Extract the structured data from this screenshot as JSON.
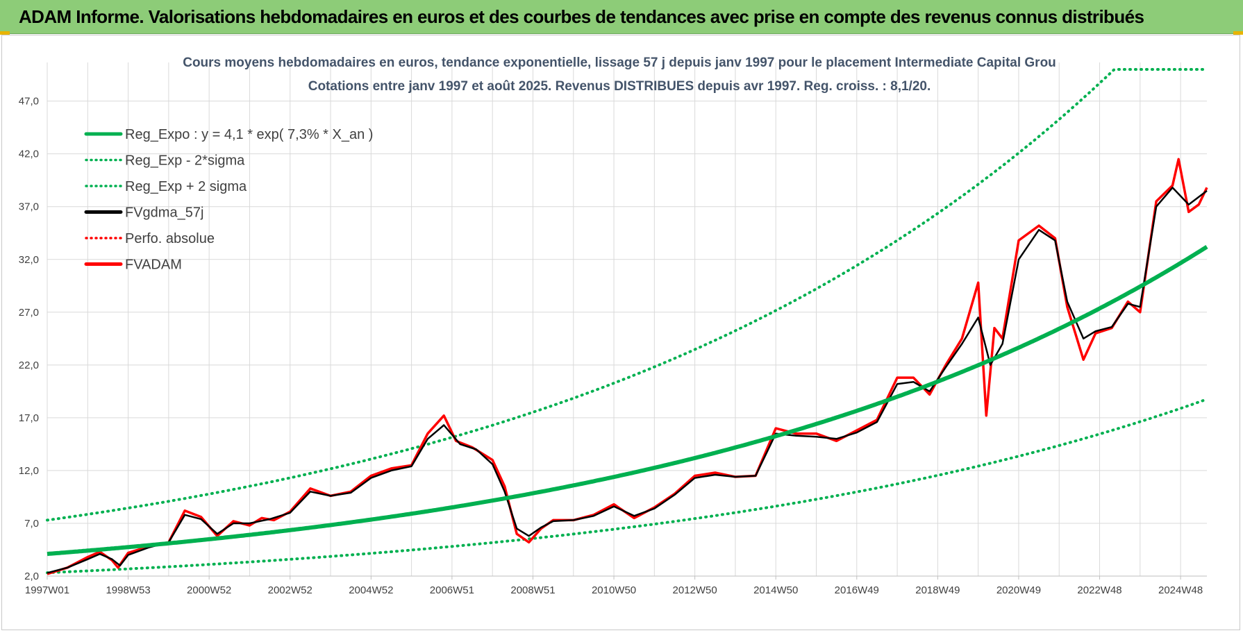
{
  "banner": {
    "title": "ADAM Informe. Valorisations hebdomadaires en euros et des courbes de tendances avec prise en compte des revenus connus distribués"
  },
  "colors": {
    "banner_bg": "#8dcc78",
    "trend": "#00b050",
    "series_black": "#000000",
    "series_red": "#ff0000",
    "grid": "#d9d9d9",
    "title": "#44546a"
  },
  "chart_data": {
    "type": "line",
    "title": "Cours moyens hebdomadaires en euros, tendance exponentielle, lissage 57 j depuis janv 1997  pour le placement Intermediate Capital Grou",
    "subtitle": "Cotations entre janv 1997 et août 2025.  Revenus DISTRIBUES depuis avr 1997.  Reg.  croiss. : 8,1/20.",
    "ylim": [
      2,
      50
    ],
    "yticks": [
      "2,0",
      "7,0",
      "12,0",
      "17,0",
      "22,0",
      "27,0",
      "32,0",
      "37,0",
      "42,0",
      "47,0"
    ],
    "ytick_values": [
      2,
      7,
      12,
      17,
      22,
      27,
      32,
      37,
      42,
      47
    ],
    "xlim": [
      1997.0,
      2025.65
    ],
    "xticks": [
      "1997W01",
      "1998W53",
      "2000W52",
      "2002W52",
      "2004W52",
      "2006W51",
      "2008W51",
      "2010W50",
      "2012W50",
      "2014W50",
      "2016W49",
      "2018W49",
      "2020W49",
      "2022W48",
      "2024W48"
    ],
    "xtick_values": [
      1997.0,
      1999.0,
      2001.0,
      2003.0,
      2005.0,
      2007.0,
      2009.0,
      2011.0,
      2013.0,
      2015.0,
      2017.0,
      2019.0,
      2021.0,
      2023.0,
      2025.0
    ],
    "grid": true,
    "legend_position": "top-left",
    "legend": [
      {
        "label": "Reg_Expo : y = 4,1 * exp( 7,3% *  X_an )",
        "style": "solid",
        "color": "#00b050"
      },
      {
        "label": "Reg_Exp - 2*sigma",
        "style": "dotted",
        "color": "#00b050"
      },
      {
        "label": "Reg_Exp + 2 sigma",
        "style": "dotted",
        "color": "#00b050"
      },
      {
        "label": "FVgdma_57j",
        "style": "solid",
        "color": "#000000"
      },
      {
        "label": "Perfo. absolue",
        "style": "dotted",
        "color": "#ff0000"
      },
      {
        "label": "FVADAM",
        "style": "solid",
        "color": "#ff0000"
      }
    ],
    "regression": {
      "a": 4.1,
      "rate": 0.073,
      "lower_factor": 0.565,
      "upper_factor": 1.78,
      "upper_cap": 50
    },
    "series": [
      {
        "name": "FVADAM",
        "x": [
          1997.0,
          1997.5,
          1998.0,
          1998.3,
          1998.6,
          1998.75,
          1999.0,
          1999.5,
          2000.0,
          2000.4,
          2000.8,
          2001.2,
          2001.6,
          2002.0,
          2002.3,
          2002.6,
          2003.0,
          2003.5,
          2004.0,
          2004.5,
          2005.0,
          2005.5,
          2006.0,
          2006.4,
          2006.8,
          2007.1,
          2007.5,
          2008.0,
          2008.3,
          2008.6,
          2008.9,
          2009.2,
          2009.5,
          2010.0,
          2010.5,
          2011.0,
          2011.5,
          2012.0,
          2012.5,
          2013.0,
          2013.5,
          2014.0,
          2014.5,
          2015.0,
          2015.5,
          2016.0,
          2016.5,
          2017.0,
          2017.5,
          2018.0,
          2018.4,
          2018.8,
          2019.2,
          2019.6,
          2020.0,
          2020.2,
          2020.4,
          2020.6,
          2021.0,
          2021.5,
          2021.9,
          2022.2,
          2022.6,
          2022.9,
          2023.3,
          2023.7,
          2024.0,
          2024.4,
          2024.8,
          2024.95,
          2025.2,
          2025.45,
          2025.65
        ],
        "y": [
          2.2,
          2.8,
          3.8,
          4.3,
          3.5,
          2.8,
          4.2,
          4.8,
          5.2,
          8.2,
          7.6,
          5.8,
          7.2,
          6.8,
          7.5,
          7.3,
          8.1,
          10.3,
          9.6,
          10.0,
          11.5,
          12.2,
          12.5,
          15.5,
          17.2,
          14.8,
          14.2,
          13.0,
          10.5,
          6.0,
          5.2,
          6.5,
          7.3,
          7.3,
          7.8,
          8.8,
          7.5,
          8.5,
          9.8,
          11.5,
          11.8,
          11.4,
          11.5,
          16.0,
          15.5,
          15.5,
          14.8,
          15.8,
          16.8,
          20.8,
          20.8,
          19.2,
          22.0,
          24.5,
          29.8,
          17.2,
          25.5,
          24.5,
          33.8,
          35.2,
          34.0,
          27.5,
          22.5,
          25.0,
          25.5,
          28.0,
          27.0,
          37.5,
          39.0,
          41.5,
          36.5,
          37.2,
          38.8
        ]
      },
      {
        "name": "FVgdma_57j",
        "x": [
          1997.0,
          1997.5,
          1998.0,
          1998.3,
          1998.6,
          1998.8,
          1999.0,
          1999.5,
          2000.0,
          2000.4,
          2000.8,
          2001.2,
          2001.6,
          2002.0,
          2002.5,
          2003.0,
          2003.5,
          2004.0,
          2004.5,
          2005.0,
          2005.5,
          2006.0,
          2006.4,
          2006.8,
          2007.2,
          2007.6,
          2008.0,
          2008.3,
          2008.6,
          2008.9,
          2009.2,
          2009.5,
          2010.0,
          2010.5,
          2011.0,
          2011.5,
          2012.0,
          2012.5,
          2013.0,
          2013.5,
          2014.0,
          2014.5,
          2015.0,
          2015.5,
          2016.0,
          2016.5,
          2017.0,
          2017.5,
          2018.0,
          2018.4,
          2018.8,
          2019.2,
          2019.6,
          2020.0,
          2020.3,
          2020.6,
          2021.0,
          2021.5,
          2021.9,
          2022.2,
          2022.6,
          2022.9,
          2023.3,
          2023.7,
          2024.0,
          2024.4,
          2024.8,
          2025.2,
          2025.65
        ],
        "y": [
          2.3,
          2.8,
          3.6,
          4.1,
          3.6,
          3.0,
          4.0,
          4.7,
          5.2,
          7.8,
          7.4,
          6.0,
          7.0,
          7.0,
          7.4,
          8.0,
          10.0,
          9.6,
          9.9,
          11.3,
          12.0,
          12.4,
          15.0,
          16.3,
          14.5,
          14.0,
          12.6,
          10.0,
          6.5,
          5.8,
          6.6,
          7.2,
          7.3,
          7.7,
          8.6,
          7.7,
          8.4,
          9.7,
          11.3,
          11.6,
          11.4,
          11.5,
          15.5,
          15.3,
          15.2,
          15.0,
          15.6,
          16.6,
          20.2,
          20.4,
          19.5,
          21.8,
          24.0,
          26.5,
          22.0,
          24.0,
          32.0,
          34.8,
          33.8,
          28.0,
          24.5,
          25.2,
          25.6,
          27.8,
          27.5,
          37.0,
          38.8,
          37.2,
          38.5
        ]
      }
    ]
  }
}
